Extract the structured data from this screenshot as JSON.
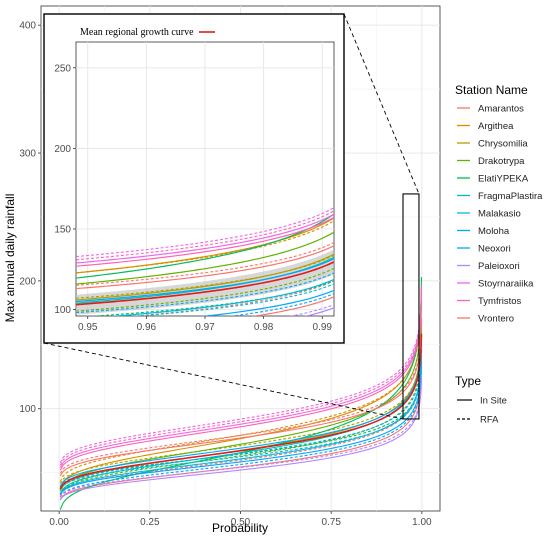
{
  "chart_data": {
    "type": "line",
    "xlabel": "Probability",
    "ylabel": "Max annual daily rainfall",
    "xlim": [
      -0.05,
      1.05
    ],
    "ylim": [
      20,
      415
    ],
    "x_ticks": [
      "0.00",
      "0.25",
      "0.50",
      "0.75",
      "1.00"
    ],
    "x_tick_values": [
      0,
      0.25,
      0.5,
      0.75,
      1.0
    ],
    "y_ticks": [
      "100",
      "200",
      "300",
      "400"
    ],
    "y_tick_values": [
      100,
      200,
      300,
      400
    ],
    "grid": true,
    "legend_station_title": "Station Name",
    "legend_type_title": "Type",
    "legend_position": "right",
    "types": [
      {
        "name": "In Site",
        "dash": "solid"
      },
      {
        "name": "RFA",
        "dash": "dashed"
      }
    ],
    "series": [
      {
        "name": "Amarantos",
        "color": "#F8766D",
        "insite": {
          "mu": 50,
          "beta": 12
        },
        "rfa": {
          "mu": 55,
          "beta": 13
        }
      },
      {
        "name": "Argithea",
        "color": "#DB8E00",
        "insite": {
          "mu": 70,
          "beta": 18
        },
        "rfa": {
          "mu": 73,
          "beta": 17
        }
      },
      {
        "name": "Chrysomilia",
        "color": "#AEA200",
        "insite": {
          "mu": 62,
          "beta": 15
        },
        "rfa": {
          "mu": 66,
          "beta": 14
        }
      },
      {
        "name": "Drakotrypa",
        "color": "#64B200",
        "insite": {
          "mu": 66,
          "beta": 17
        },
        "rfa": {
          "mu": 58,
          "beta": 14
        }
      },
      {
        "name": "ElatiYPEKA",
        "color": "#00BD5C",
        "insite": {
          "mu": 58,
          "beta": 21
        },
        "rfa": {
          "mu": 60,
          "beta": 12
        }
      },
      {
        "name": "FragmaPlastira",
        "color": "#00C1A7",
        "insite": {
          "mu": 60,
          "beta": 15
        },
        "rfa": {
          "mu": 62,
          "beta": 14
        }
      },
      {
        "name": "Malakasio",
        "color": "#00BADE",
        "insite": {
          "mu": 56,
          "beta": 13
        },
        "rfa": {
          "mu": 58,
          "beta": 12
        }
      },
      {
        "name": "Moloha",
        "color": "#00A6FF",
        "insite": {
          "mu": 64,
          "beta": 14
        },
        "rfa": {
          "mu": 60,
          "beta": 13
        }
      },
      {
        "name": "Neoxori",
        "color": "#00A6FF",
        "insite": {
          "mu": 54,
          "beta": 12
        },
        "rfa": {
          "mu": 52,
          "beta": 12
        }
      },
      {
        "name": "Paleioxori",
        "color": "#B385FF",
        "insite": {
          "mu": 48,
          "beta": 11
        },
        "rfa": {
          "mu": 50,
          "beta": 11
        }
      },
      {
        "name": "Stoyrnaraiika",
        "color": "#EF67EB",
        "insite": {
          "mu": 82,
          "beta": 16
        },
        "rfa": {
          "mu": 86,
          "beta": 16
        }
      },
      {
        "name": "Tymfristos",
        "color": "#FF63B6",
        "insite": {
          "mu": 80,
          "beta": 16
        },
        "rfa": {
          "mu": 84,
          "beta": 16
        }
      },
      {
        "name": "Vrontero",
        "color": "#F8766D",
        "insite": {
          "mu": 72,
          "beta": 14
        },
        "rfa": {
          "mu": 74,
          "beta": 14
        }
      }
    ],
    "mean_curve": {
      "name": "Mean regional growth curve",
      "color": "#E41A1C",
      "mu": 62,
      "beta": 14
    },
    "inset": {
      "xlim": [
        0.948,
        0.992
      ],
      "ylim": [
        96,
        266
      ],
      "x_ticks": [
        "0.95",
        "0.96",
        "0.97",
        "0.98",
        "0.99"
      ],
      "x_tick_values": [
        0.95,
        0.96,
        0.97,
        0.98,
        0.99
      ],
      "y_ticks": [
        "100",
        "150",
        "200",
        "250"
      ],
      "y_tick_values": [
        100,
        150,
        200,
        250
      ],
      "legend_label": "Mean regional growth curve"
    },
    "zoom_box": {
      "x": [
        0.948,
        0.992
      ],
      "y": [
        92,
        268
      ]
    }
  }
}
